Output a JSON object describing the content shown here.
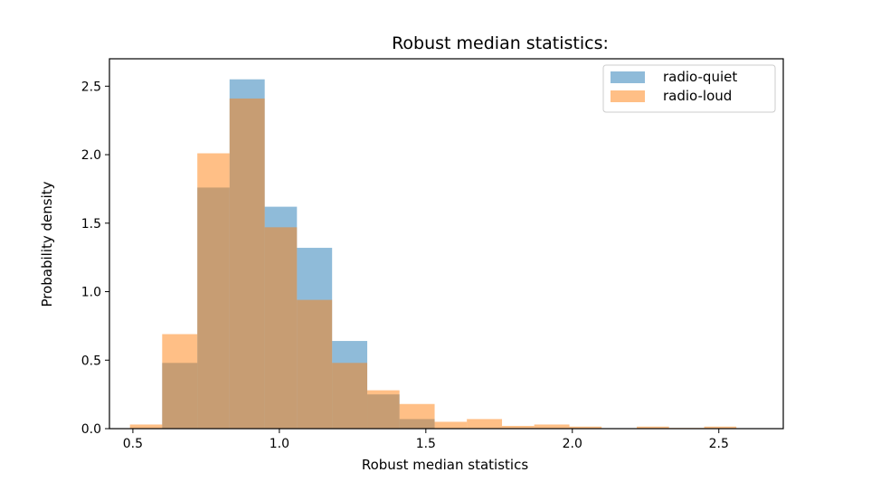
{
  "chart_data": {
    "type": "bar",
    "title": "Robust median statistics:",
    "xlabel": "Robust median statistics",
    "ylabel": "Probability density",
    "xlim": [
      0.42,
      2.72
    ],
    "ylim": [
      0,
      2.7
    ],
    "xticks": [
      {
        "value": 0.5,
        "label": "0.5"
      },
      {
        "value": 1.0,
        "label": "1.0"
      },
      {
        "value": 1.5,
        "label": "1.5"
      },
      {
        "value": 2.0,
        "label": "2.0"
      },
      {
        "value": 2.5,
        "label": "2.5"
      }
    ],
    "yticks": [
      {
        "value": 0.0,
        "label": "0.0"
      },
      {
        "value": 0.5,
        "label": "0.5"
      },
      {
        "value": 1.0,
        "label": "1.0"
      },
      {
        "value": 1.5,
        "label": "1.5"
      },
      {
        "value": 2.0,
        "label": "2.0"
      },
      {
        "value": 2.5,
        "label": "2.5"
      }
    ],
    "legend_position": "top-right",
    "grid": false,
    "series": [
      {
        "name": "radio-quiet",
        "color": "#1f77b4",
        "bins": [
          {
            "x0": 0.6,
            "x1": 0.72,
            "value": 0.48
          },
          {
            "x0": 0.72,
            "x1": 0.83,
            "value": 1.76
          },
          {
            "x0": 0.83,
            "x1": 0.95,
            "value": 2.55
          },
          {
            "x0": 0.95,
            "x1": 1.06,
            "value": 1.62
          },
          {
            "x0": 1.06,
            "x1": 1.18,
            "value": 1.32
          },
          {
            "x0": 1.18,
            "x1": 1.3,
            "value": 0.64
          },
          {
            "x0": 1.3,
            "x1": 1.41,
            "value": 0.25
          },
          {
            "x0": 1.41,
            "x1": 1.53,
            "value": 0.07
          }
        ]
      },
      {
        "name": "radio-loud",
        "color": "#ff7f0e",
        "bins": [
          {
            "x0": 0.49,
            "x1": 0.6,
            "value": 0.03
          },
          {
            "x0": 0.6,
            "x1": 0.72,
            "value": 0.69
          },
          {
            "x0": 0.72,
            "x1": 0.83,
            "value": 2.01
          },
          {
            "x0": 0.83,
            "x1": 0.95,
            "value": 2.41
          },
          {
            "x0": 0.95,
            "x1": 1.06,
            "value": 1.47
          },
          {
            "x0": 1.06,
            "x1": 1.18,
            "value": 0.94
          },
          {
            "x0": 1.18,
            "x1": 1.3,
            "value": 0.48
          },
          {
            "x0": 1.3,
            "x1": 1.41,
            "value": 0.28
          },
          {
            "x0": 1.41,
            "x1": 1.53,
            "value": 0.18
          },
          {
            "x0": 1.53,
            "x1": 1.64,
            "value": 0.05
          },
          {
            "x0": 1.64,
            "x1": 1.76,
            "value": 0.07
          },
          {
            "x0": 1.76,
            "x1": 1.87,
            "value": 0.02
          },
          {
            "x0": 1.87,
            "x1": 1.99,
            "value": 0.03
          },
          {
            "x0": 1.99,
            "x1": 2.1,
            "value": 0.015
          },
          {
            "x0": 2.22,
            "x1": 2.33,
            "value": 0.015
          },
          {
            "x0": 2.33,
            "x1": 2.45,
            "value": 0.005
          },
          {
            "x0": 2.45,
            "x1": 2.56,
            "value": 0.015
          }
        ]
      }
    ]
  }
}
